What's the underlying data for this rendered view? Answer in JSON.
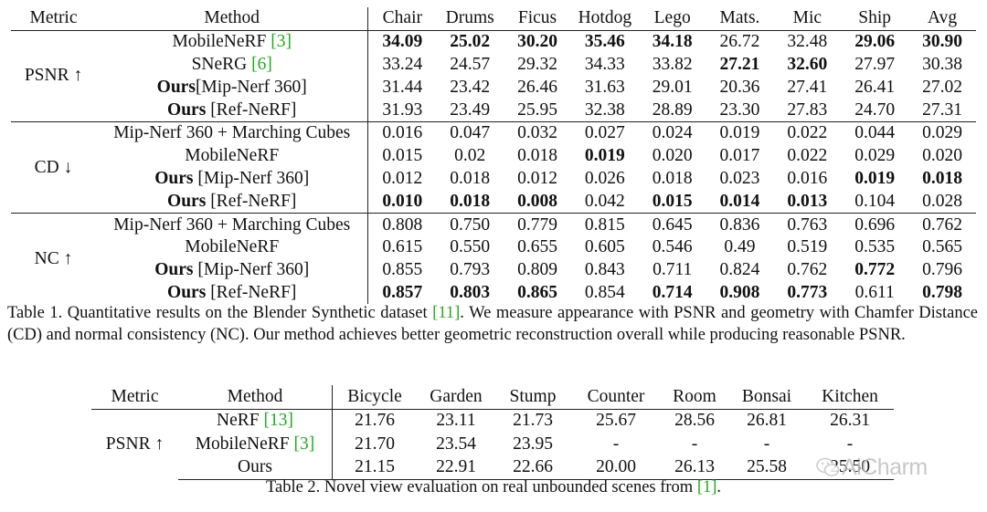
{
  "table1": {
    "headers": [
      "Metric",
      "Method",
      "Chair",
      "Drums",
      "Ficus",
      "Hotdog",
      "Lego",
      "Mats.",
      "Mic",
      "Ship",
      "Avg"
    ],
    "groups": [
      {
        "metric": "PSNR ↑",
        "rows": [
          {
            "method_bold": "",
            "method_text": "MobileNeRF ",
            "cite": "[3]",
            "method_after": "",
            "values": [
              "34.09",
              "25.02",
              "30.20",
              "35.46",
              "34.18",
              "26.72",
              "32.48",
              "29.06",
              "30.90"
            ],
            "bold": [
              true,
              true,
              true,
              true,
              true,
              false,
              false,
              true,
              true
            ]
          },
          {
            "method_bold": "",
            "method_text": "SNeRG ",
            "cite": "[6]",
            "method_after": "",
            "values": [
              "33.24",
              "24.57",
              "29.32",
              "34.33",
              "33.82",
              "27.21",
              "32.60",
              "27.97",
              "30.38"
            ],
            "bold": [
              false,
              false,
              false,
              false,
              false,
              true,
              true,
              false,
              false
            ]
          },
          {
            "method_bold": "Ours",
            "method_text": "[Mip-Nerf 360]",
            "cite": "",
            "method_after": "",
            "values": [
              "31.44",
              "23.42",
              "26.46",
              "31.63",
              "29.01",
              "20.36",
              "27.41",
              "26.41",
              "27.02"
            ],
            "bold": [
              false,
              false,
              false,
              false,
              false,
              false,
              false,
              false,
              false
            ]
          },
          {
            "method_bold": "Ours",
            "method_text": " [Ref-NeRF]",
            "cite": "",
            "method_after": "",
            "values": [
              "31.93",
              "23.49",
              "25.95",
              "32.38",
              "28.89",
              "23.30",
              "27.83",
              "24.70",
              "27.31"
            ],
            "bold": [
              false,
              false,
              false,
              false,
              false,
              false,
              false,
              false,
              false
            ]
          }
        ]
      },
      {
        "metric": "CD ↓",
        "rows": [
          {
            "method_bold": "",
            "method_text": "Mip-Nerf 360 + Marching Cubes",
            "cite": "",
            "method_after": "",
            "values": [
              "0.016",
              "0.047",
              "0.032",
              "0.027",
              "0.024",
              "0.019",
              "0.022",
              "0.044",
              "0.029"
            ],
            "bold": [
              false,
              false,
              false,
              false,
              false,
              false,
              false,
              false,
              false
            ]
          },
          {
            "method_bold": "",
            "method_text": "MobileNeRF",
            "cite": "",
            "method_after": "",
            "values": [
              "0.015",
              "0.02",
              "0.018",
              "0.019",
              "0.020",
              "0.017",
              "0.022",
              "0.029",
              "0.020"
            ],
            "bold": [
              false,
              false,
              false,
              true,
              false,
              false,
              false,
              false,
              false
            ]
          },
          {
            "method_bold": "Ours",
            "method_text": " [Mip-Nerf 360]",
            "cite": "",
            "method_after": "",
            "values": [
              "0.012",
              "0.018",
              "0.012",
              "0.026",
              "0.018",
              "0.023",
              "0.016",
              "0.019",
              "0.018"
            ],
            "bold": [
              false,
              false,
              false,
              false,
              false,
              false,
              false,
              true,
              true
            ]
          },
          {
            "method_bold": "Ours",
            "method_text": " [Ref-NeRF]",
            "cite": "",
            "method_after": "",
            "values": [
              "0.010",
              "0.018",
              "0.008",
              "0.042",
              "0.015",
              "0.014",
              "0.013",
              "0.104",
              "0.028"
            ],
            "bold": [
              true,
              true,
              true,
              false,
              true,
              true,
              true,
              false,
              false
            ]
          }
        ]
      },
      {
        "metric": "NC ↑",
        "rows": [
          {
            "method_bold": "",
            "method_text": "Mip-Nerf 360 + Marching Cubes",
            "cite": "",
            "method_after": "",
            "values": [
              "0.808",
              "0.750",
              "0.779",
              "0.815",
              "0.645",
              "0.836",
              "0.763",
              "0.696",
              "0.762"
            ],
            "bold": [
              false,
              false,
              false,
              false,
              false,
              false,
              false,
              false,
              false
            ]
          },
          {
            "method_bold": "",
            "method_text": "MobileNeRF",
            "cite": "",
            "method_after": "",
            "values": [
              "0.615",
              "0.550",
              "0.655",
              "0.605",
              "0.546",
              "0.49",
              "0.519",
              "0.535",
              "0.565"
            ],
            "bold": [
              false,
              false,
              false,
              false,
              false,
              false,
              false,
              false,
              false
            ]
          },
          {
            "method_bold": "Ours",
            "method_text": " [Mip-Nerf 360]",
            "cite": "",
            "method_after": "",
            "values": [
              "0.855",
              "0.793",
              "0.809",
              "0.843",
              "0.711",
              "0.824",
              "0.762",
              "0.772",
              "0.796"
            ],
            "bold": [
              false,
              false,
              false,
              false,
              false,
              false,
              false,
              true,
              false
            ]
          },
          {
            "method_bold": "Ours",
            "method_text": " [Ref-NeRF]",
            "cite": "",
            "method_after": "",
            "values": [
              "0.857",
              "0.803",
              "0.865",
              "0.854",
              "0.714",
              "0.908",
              "0.773",
              "0.611",
              "0.798"
            ],
            "bold": [
              true,
              true,
              true,
              false,
              true,
              true,
              true,
              false,
              true
            ]
          }
        ]
      }
    ],
    "caption": {
      "before": "Table 1. Quantitative results on the Blender Synthetic dataset ",
      "cite": "[11]",
      "after": ".  We measure appearance with PSNR and geometry with Chamfer Distance (CD) and normal consistency (NC). Our method achieves better geometric reconstruction overall while producing reasonable PSNR."
    }
  },
  "table2": {
    "headers": [
      "Metric",
      "Method",
      "Bicycle",
      "Garden",
      "Stump",
      "Counter",
      "Room",
      "Bonsai",
      "Kitchen"
    ],
    "metric": "PSNR ↑",
    "rows": [
      {
        "method_text": "NeRF ",
        "cite": "[13]",
        "values": [
          "21.76",
          "23.11",
          "21.73",
          "25.67",
          "28.56",
          "26.81",
          "26.31"
        ]
      },
      {
        "method_text": "MobileNeRF ",
        "cite": "[3]",
        "values": [
          "21.70",
          "23.54",
          "23.95",
          "-",
          "-",
          "-",
          "-"
        ]
      },
      {
        "method_text": "Ours",
        "cite": "",
        "values": [
          "21.15",
          "22.91",
          "22.66",
          "20.00",
          "26.13",
          "25.58",
          "25.50"
        ]
      }
    ],
    "caption": {
      "before": "Table 2. Novel view evaluation on real unbounded scenes from ",
      "cite": "[1]",
      "after": "."
    }
  },
  "watermark": {
    "text": "AiCharm",
    "icon": "wechat-icon"
  },
  "colors": {
    "citation": "#22aa22",
    "watermark": "#bfbfbf"
  }
}
